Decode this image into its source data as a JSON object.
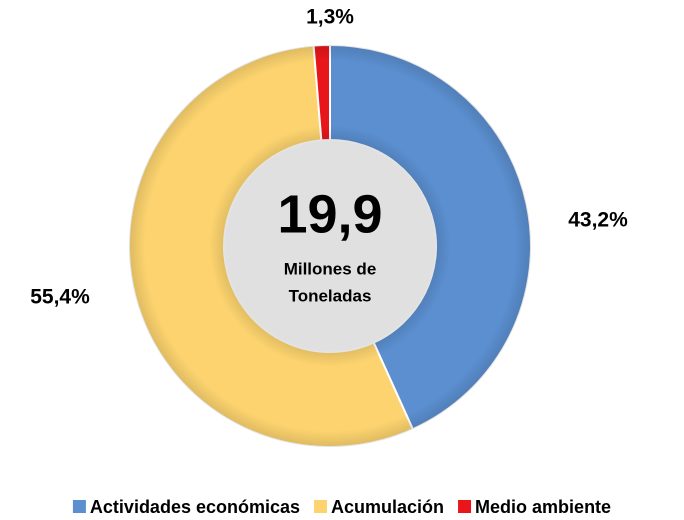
{
  "chart_data": {
    "type": "donut",
    "categories": [
      "Actividades económicas",
      "Acumulación",
      "Medio ambiente"
    ],
    "values": [
      43.2,
      55.4,
      1.3
    ],
    "value_labels": [
      "43,2%",
      "55,4%",
      "1,3%"
    ],
    "colors": [
      "#5b8fd0",
      "#fcd36e",
      "#e8161b"
    ],
    "center_title": "19,9",
    "center_subtitle": [
      "Millones de",
      "Toneladas"
    ],
    "legend": "bottom"
  }
}
